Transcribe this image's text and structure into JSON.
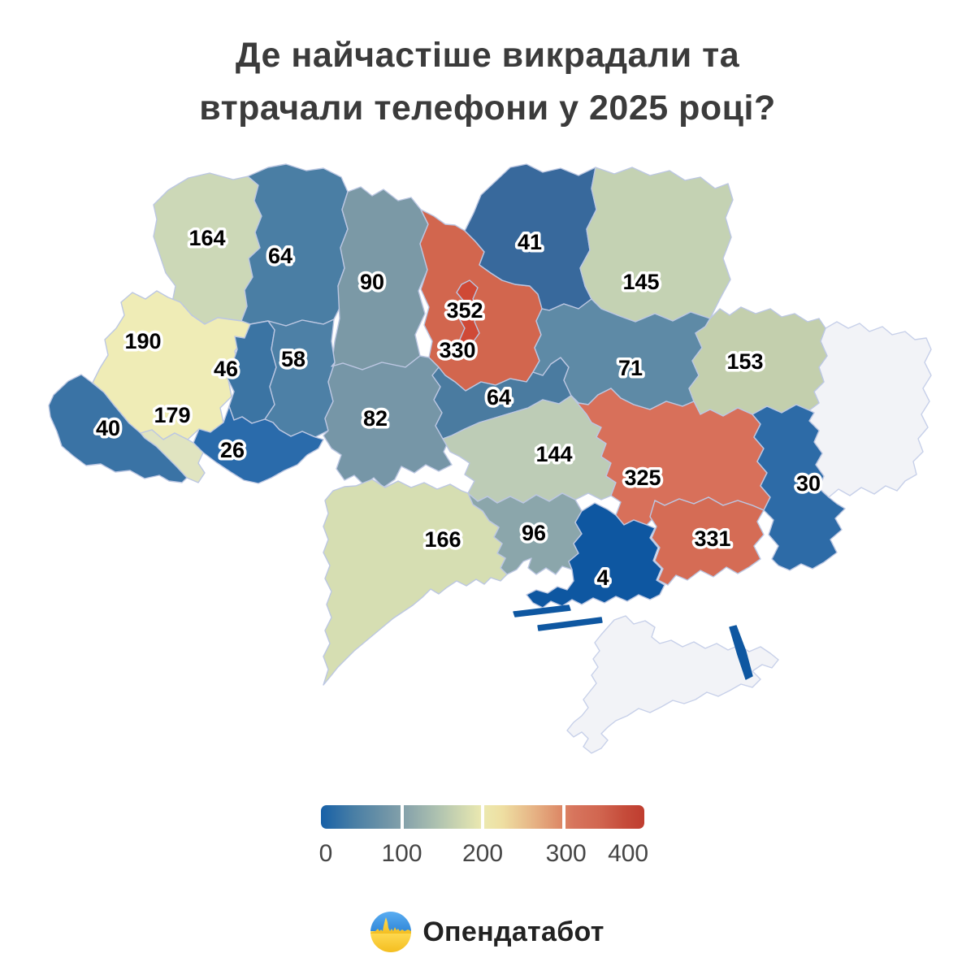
{
  "title": {
    "line1": "Де найчастіше викрадали та",
    "line2": "втрачали телефони у 2025 році?"
  },
  "map": {
    "border_color": "#bcc7e2",
    "no_data": {
      "fill": "#f2f3f7",
      "border": "#c7d0e9",
      "regions": [
        "luhansk",
        "crimea"
      ]
    },
    "regions": [
      {
        "id": "volyn",
        "value": 164,
        "color": "#ccd8b7"
      },
      {
        "id": "rivne",
        "value": 64,
        "color": "#4a7ea4"
      },
      {
        "id": "zhytomyr",
        "value": 90,
        "color": "#7b99a6"
      },
      {
        "id": "kyiv_oblast",
        "value": 330,
        "color": "#d2664e"
      },
      {
        "id": "kyiv_city",
        "value": 352,
        "color": "#cf4936"
      },
      {
        "id": "chernihiv",
        "value": 41,
        "color": "#38699c"
      },
      {
        "id": "sumy",
        "value": 145,
        "color": "#c4d2b3"
      },
      {
        "id": "lviv",
        "value": 190,
        "color": "#efecb6"
      },
      {
        "id": "ternopil",
        "value": 46,
        "color": "#3b74a3"
      },
      {
        "id": "khmelnytskyi",
        "value": 58,
        "color": "#4d80a6"
      },
      {
        "id": "vinnytsia",
        "value": 82,
        "color": "#7696a7"
      },
      {
        "id": "cherkasy",
        "value": 64,
        "color": "#4a7ba0"
      },
      {
        "id": "poltava",
        "value": 71,
        "color": "#5e8aa6"
      },
      {
        "id": "kharkiv",
        "value": 153,
        "color": "#c3cfad"
      },
      {
        "id": "ivano_frankivsk",
        "value": 179,
        "color": "#e0e4c0"
      },
      {
        "id": "zakarpattia",
        "value": 40,
        "color": "#3a73a5"
      },
      {
        "id": "chernivtsi",
        "value": 26,
        "color": "#2a6bab"
      },
      {
        "id": "kirovohrad",
        "value": 144,
        "color": "#bdccb6"
      },
      {
        "id": "dnipro",
        "value": 325,
        "color": "#d8705a"
      },
      {
        "id": "zaporizhzhia",
        "value": 331,
        "color": "#d56c55"
      },
      {
        "id": "donetsk",
        "value": 30,
        "color": "#2d6ba7"
      },
      {
        "id": "mykolaiv",
        "value": 96,
        "color": "#8ba6ab"
      },
      {
        "id": "odesa",
        "value": 166,
        "color": "#d6deb2"
      },
      {
        "id": "kherson",
        "value": 4,
        "color": "#0e57a1"
      }
    ]
  },
  "legend": {
    "gradient": [
      "#1760a7 0%",
      "#487ea5 10%",
      "#6f94a7 20%",
      "#8aa5ab 27%",
      "#aec2b0 36%",
      "#d6dcb0 45%",
      "#ece9b0 50%",
      "#eedfa2 56%",
      "#e6b284 66%",
      "#dd8a67 74%",
      "#d7755d 78%",
      "#d16650 86%",
      "#c54b3a 94%",
      "#bf3d2f 100%"
    ],
    "gap_positions": [
      25,
      50,
      75
    ],
    "ticks": [
      {
        "label": "0",
        "pos": 1.5
      },
      {
        "label": "100",
        "pos": 25
      },
      {
        "label": "200",
        "pos": 50
      },
      {
        "label": "300",
        "pos": 75.8
      },
      {
        "label": "400",
        "pos": 95
      }
    ]
  },
  "footer": {
    "brand": "Опендатабот",
    "flag_blue_top": "#5aadf2",
    "flag_blue_bottom": "#2f86d8",
    "flag_yellow_top": "#ffdc55",
    "flag_yellow_bottom": "#f4be20"
  },
  "chart_data": {
    "type": "heatmap",
    "subtype": "choropleth map of Ukraine oblasts",
    "title": "Де найчастіше викрадали та втрачали телефони у 2025 році?",
    "legend_position": "bottom",
    "scale": {
      "min": 0,
      "max": 400,
      "tick_labels": [
        "0",
        "100",
        "200",
        "300",
        "400"
      ],
      "palette": "blue → pale yellow-green → red"
    },
    "regions": [
      {
        "region": "volyn",
        "value": 164
      },
      {
        "region": "rivne",
        "value": 64
      },
      {
        "region": "zhytomyr",
        "value": 90
      },
      {
        "region": "kyiv_oblast",
        "value": 330
      },
      {
        "region": "kyiv_city",
        "value": 352
      },
      {
        "region": "chernihiv",
        "value": 41
      },
      {
        "region": "sumy",
        "value": 145
      },
      {
        "region": "lviv",
        "value": 190
      },
      {
        "region": "ternopil",
        "value": 46
      },
      {
        "region": "khmelnytskyi",
        "value": 58
      },
      {
        "region": "vinnytsia",
        "value": 82
      },
      {
        "region": "cherkasy",
        "value": 64
      },
      {
        "region": "poltava",
        "value": 71
      },
      {
        "region": "kharkiv",
        "value": 153
      },
      {
        "region": "ivano_frankivsk",
        "value": 179
      },
      {
        "region": "zakarpattia",
        "value": 40
      },
      {
        "region": "chernivtsi",
        "value": 26
      },
      {
        "region": "kirovohrad",
        "value": 144
      },
      {
        "region": "dnipro",
        "value": 325
      },
      {
        "region": "zaporizhzhia",
        "value": 331
      },
      {
        "region": "donetsk",
        "value": 30
      },
      {
        "region": "mykolaiv",
        "value": 96
      },
      {
        "region": "odesa",
        "value": 166
      },
      {
        "region": "kherson",
        "value": 4
      }
    ],
    "no_data_regions": [
      "luhansk",
      "crimea"
    ]
  }
}
